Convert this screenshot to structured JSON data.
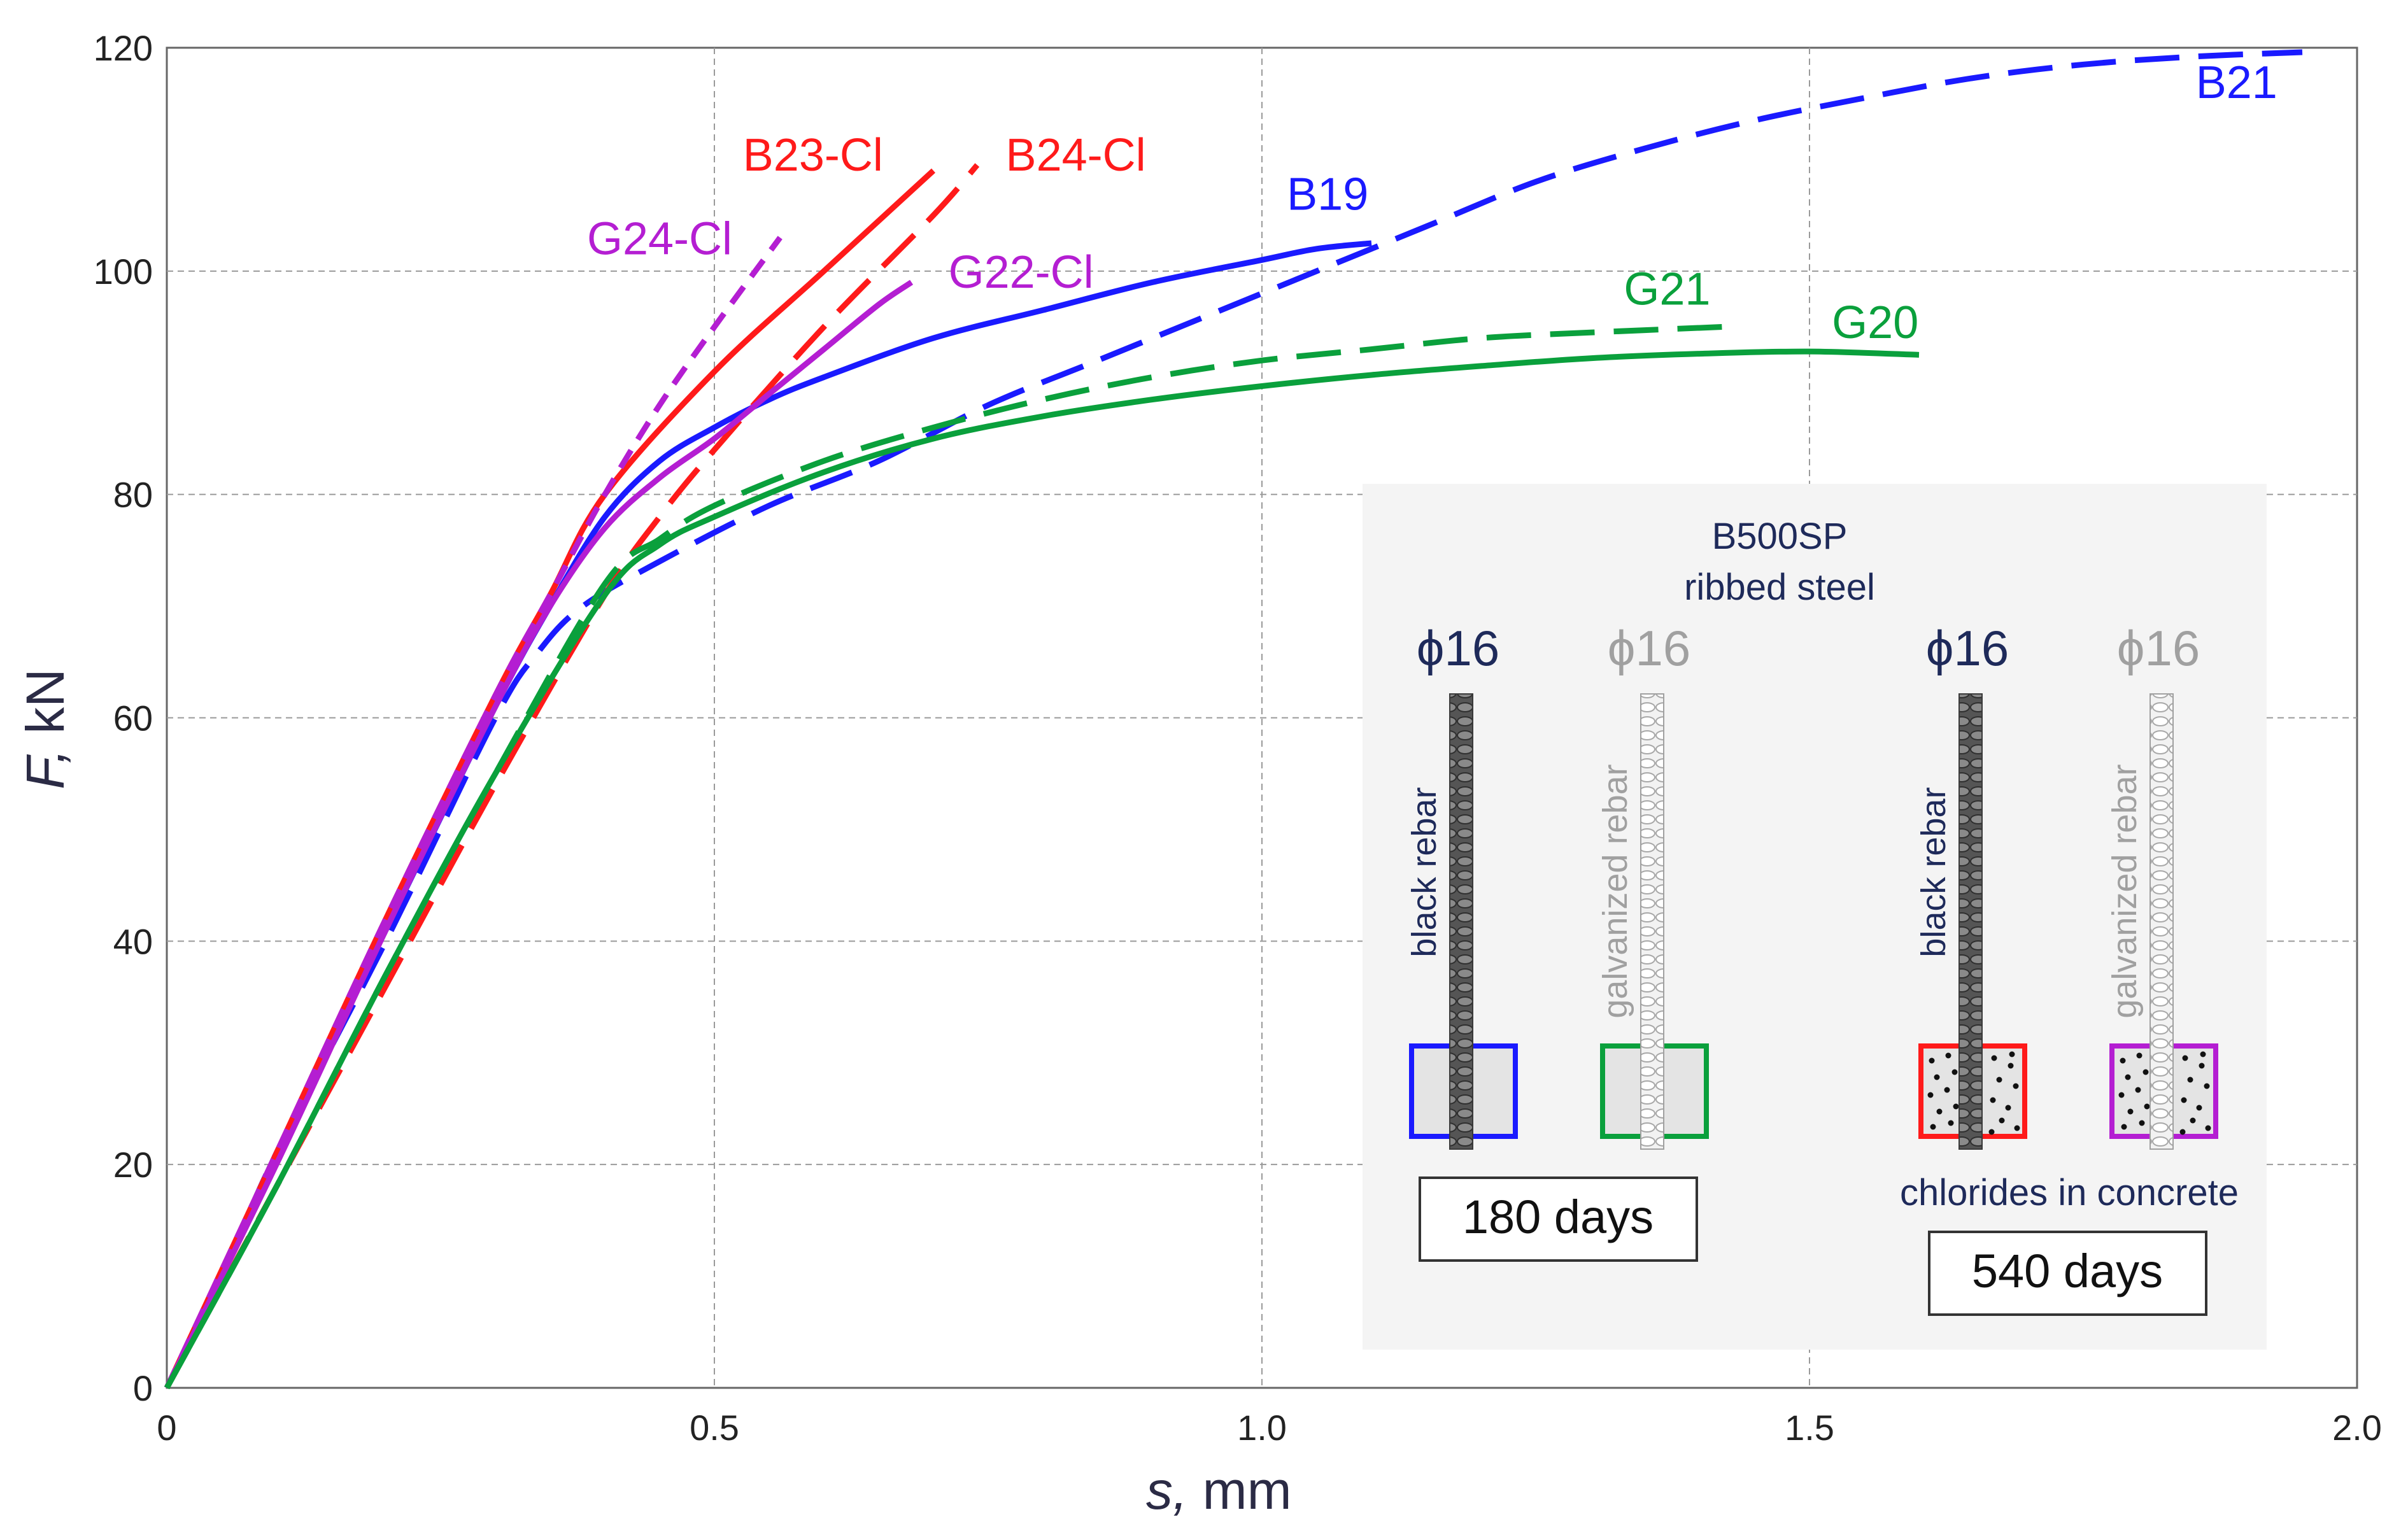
{
  "chart_data": {
    "type": "line",
    "title": "",
    "xlabel_var": "s,",
    "xlabel_unit": " mm",
    "ylabel_var": "F,",
    "ylabel_unit": " kN",
    "xlim": [
      0,
      2.0
    ],
    "ylim": [
      0,
      120
    ],
    "grid": true,
    "x_ticks": [
      0,
      0.5,
      1.0,
      1.5,
      2.0
    ],
    "x_tick_labels": [
      "0",
      "0.5",
      "1.0",
      "1.5",
      "2.0"
    ],
    "y_ticks": [
      0,
      20,
      40,
      60,
      80,
      100,
      120
    ],
    "y_tick_labels": [
      "0",
      "20",
      "40",
      "60",
      "80",
      "100",
      "120"
    ],
    "series": [
      {
        "name": "B21",
        "label": "B21",
        "color": "#1a1aff",
        "style": "long-dash",
        "label_x": 1.89,
        "label_y": 115.5,
        "points": [
          [
            0,
            0
          ],
          [
            0.05,
            10
          ],
          [
            0.1,
            21
          ],
          [
            0.2,
            40
          ],
          [
            0.3,
            60
          ],
          [
            0.34,
            66
          ],
          [
            0.38,
            70
          ],
          [
            0.45,
            74
          ],
          [
            0.55,
            79
          ],
          [
            0.65,
            83
          ],
          [
            0.75,
            88
          ],
          [
            0.85,
            92
          ],
          [
            0.95,
            96
          ],
          [
            1.05,
            100
          ],
          [
            1.15,
            104
          ],
          [
            1.25,
            108
          ],
          [
            1.35,
            111
          ],
          [
            1.45,
            113.5
          ],
          [
            1.55,
            115.5
          ],
          [
            1.65,
            117.3
          ],
          [
            1.75,
            118.5
          ],
          [
            1.85,
            119.2
          ],
          [
            1.95,
            119.6
          ]
        ]
      },
      {
        "name": "B19",
        "label": "B19",
        "color": "#1a1aff",
        "style": "solid",
        "label_x": 1.06,
        "label_y": 105.5,
        "points": [
          [
            0,
            0
          ],
          [
            0.05,
            10
          ],
          [
            0.1,
            21
          ],
          [
            0.2,
            41
          ],
          [
            0.3,
            61
          ],
          [
            0.35,
            70
          ],
          [
            0.4,
            78
          ],
          [
            0.45,
            83
          ],
          [
            0.5,
            86
          ],
          [
            0.55,
            88.5
          ],
          [
            0.6,
            90.5
          ],
          [
            0.7,
            94
          ],
          [
            0.8,
            96.5
          ],
          [
            0.9,
            99
          ],
          [
            1.0,
            101
          ],
          [
            1.05,
            102
          ],
          [
            1.1,
            102.5
          ]
        ]
      },
      {
        "name": "B23-Cl",
        "label": "B23-Cl",
        "color": "#ff1a1a",
        "style": "solid",
        "label_x": 0.59,
        "label_y": 109,
        "points": [
          [
            0,
            0
          ],
          [
            0.1,
            21
          ],
          [
            0.2,
            42
          ],
          [
            0.3,
            62
          ],
          [
            0.35,
            71
          ],
          [
            0.4,
            80
          ],
          [
            0.5,
            91
          ],
          [
            0.6,
            100
          ],
          [
            0.7,
            109
          ]
        ]
      },
      {
        "name": "B24-Cl",
        "label": "B24-Cl",
        "color": "#ff1a1a",
        "style": "long-dash",
        "label_x": 0.83,
        "label_y": 109,
        "points": [
          [
            0,
            0
          ],
          [
            0.1,
            18
          ],
          [
            0.2,
            36
          ],
          [
            0.3,
            54
          ],
          [
            0.4,
            71
          ],
          [
            0.45,
            78
          ],
          [
            0.5,
            84
          ],
          [
            0.6,
            95
          ],
          [
            0.7,
            105
          ],
          [
            0.74,
            109.5
          ]
        ]
      },
      {
        "name": "G24-Cl",
        "label": "G24-Cl",
        "color": "#b41ed2",
        "style": "short-dash",
        "label_x": 0.45,
        "label_y": 101.5,
        "points": [
          [
            0,
            0
          ],
          [
            0.1,
            21
          ],
          [
            0.2,
            42
          ],
          [
            0.3,
            62
          ],
          [
            0.35,
            71
          ],
          [
            0.4,
            80
          ],
          [
            0.45,
            88
          ],
          [
            0.5,
            95
          ],
          [
            0.56,
            103
          ]
        ]
      },
      {
        "name": "G22-Cl",
        "label": "G22-Cl",
        "color": "#b41ed2",
        "style": "solid",
        "label_x": 0.78,
        "label_y": 98.5,
        "points": [
          [
            0,
            0
          ],
          [
            0.1,
            20
          ],
          [
            0.2,
            41
          ],
          [
            0.3,
            61
          ],
          [
            0.35,
            70
          ],
          [
            0.4,
            77
          ],
          [
            0.45,
            81.5
          ],
          [
            0.5,
            85
          ],
          [
            0.55,
            89
          ],
          [
            0.6,
            93
          ],
          [
            0.65,
            97
          ],
          [
            0.68,
            99
          ]
        ]
      },
      {
        "name": "G21",
        "label": "G21",
        "color": "#0aa03c",
        "style": "long-dash",
        "label_x": 1.37,
        "label_y": 97,
        "points": [
          [
            0,
            0
          ],
          [
            0.1,
            18
          ],
          [
            0.2,
            37
          ],
          [
            0.3,
            55
          ],
          [
            0.4,
            72
          ],
          [
            0.45,
            76
          ],
          [
            0.5,
            79
          ],
          [
            0.6,
            83
          ],
          [
            0.7,
            86
          ],
          [
            0.8,
            88.5
          ],
          [
            0.9,
            90.5
          ],
          [
            1.0,
            92
          ],
          [
            1.1,
            93
          ],
          [
            1.2,
            94
          ],
          [
            1.3,
            94.5
          ],
          [
            1.42,
            95
          ]
        ]
      },
      {
        "name": "G20",
        "label": "G20",
        "color": "#0aa03c",
        "style": "solid",
        "label_x": 1.56,
        "label_y": 94,
        "points": [
          [
            0,
            0
          ],
          [
            0.1,
            18
          ],
          [
            0.2,
            37
          ],
          [
            0.3,
            55
          ],
          [
            0.4,
            71
          ],
          [
            0.45,
            75.5
          ],
          [
            0.5,
            78
          ],
          [
            0.6,
            82
          ],
          [
            0.7,
            85
          ],
          [
            0.8,
            87
          ],
          [
            0.9,
            88.5
          ],
          [
            1.0,
            89.7
          ],
          [
            1.1,
            90.7
          ],
          [
            1.2,
            91.5
          ],
          [
            1.3,
            92.2
          ],
          [
            1.4,
            92.6
          ],
          [
            1.5,
            92.8
          ],
          [
            1.6,
            92.5
          ]
        ]
      }
    ]
  },
  "inset": {
    "title_line1": "B500SP",
    "title_line2": "ribbed steel",
    "diameter_label": "ϕ16",
    "black_rebar": "black rebar",
    "galvanized_rebar": "galvanized rebar",
    "period1": "180 days",
    "period2": "540 days",
    "chlorides_note": "chlorides in concrete",
    "colors": {
      "blue": "#1a1aff",
      "green": "#0aa03c",
      "red": "#ff1a1a",
      "purple": "#b41ed2"
    }
  }
}
